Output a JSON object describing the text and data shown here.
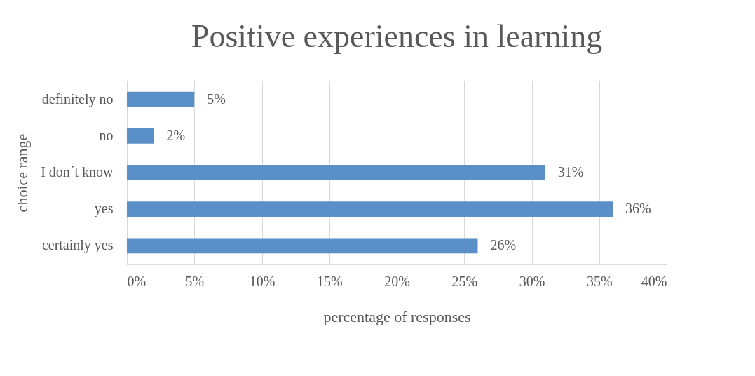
{
  "chart_data": {
    "type": "bar",
    "orientation": "horizontal",
    "title": "Positive experiences in learning",
    "xlabel": "percentage of responses",
    "ylabel": "choice range",
    "categories": [
      "definitely no",
      "no",
      "I don´t know",
      "yes",
      "certainly yes"
    ],
    "values": [
      5,
      2,
      31,
      36,
      26
    ],
    "color": "#5b8fc7",
    "value_labels": [
      "5%",
      "2%",
      "31%",
      "36%",
      "26%"
    ],
    "xlim": [
      0,
      40
    ],
    "xticks": [
      {
        "value": 0,
        "label": "0%"
      },
      {
        "value": 5,
        "label": "5%"
      },
      {
        "value": 10,
        "label": "10%"
      },
      {
        "value": 15,
        "label": "15%"
      },
      {
        "value": 20,
        "label": "20%"
      },
      {
        "value": 25,
        "label": "25%"
      },
      {
        "value": 30,
        "label": "30%"
      },
      {
        "value": 35,
        "label": "35%"
      },
      {
        "value": 40,
        "label": "40%"
      }
    ],
    "grid": "x"
  }
}
